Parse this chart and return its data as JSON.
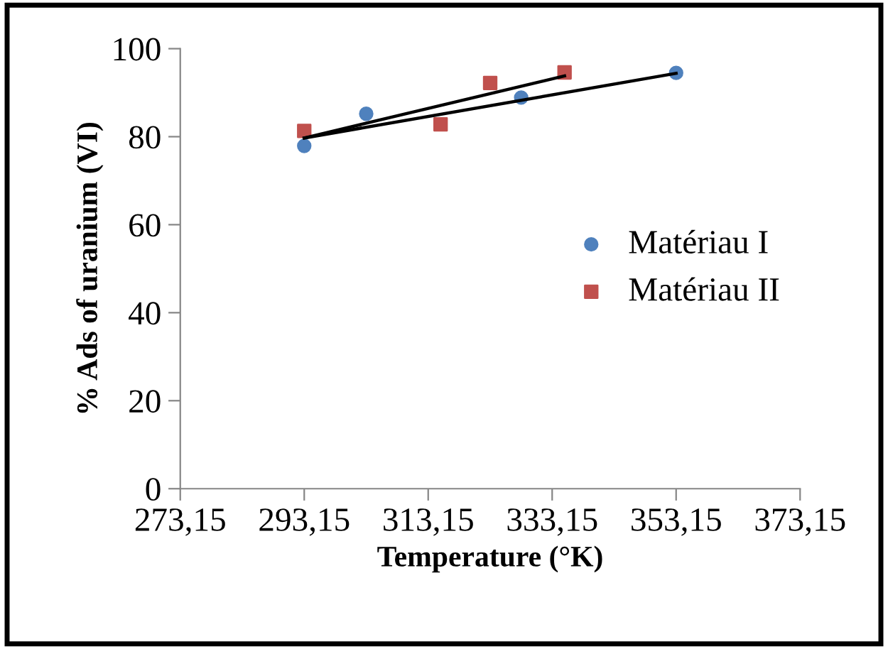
{
  "chart_data": {
    "type": "scatter",
    "xlabel": "Temperature (°K)",
    "ylabel": "% Ads of uranium (VI)",
    "xlim": [
      273.15,
      373.15
    ],
    "xticks": [
      {
        "value": 273.15,
        "label": "273,15"
      },
      {
        "value": 293.15,
        "label": "293,15"
      },
      {
        "value": 313.15,
        "label": "313,15"
      },
      {
        "value": 333.15,
        "label": "333,15"
      },
      {
        "value": 353.15,
        "label": "353,15"
      },
      {
        "value": 373.15,
        "label": "373,15"
      }
    ],
    "ylim": [
      0,
      100
    ],
    "yticks": [
      0,
      20,
      40,
      60,
      80,
      100
    ],
    "grid": false,
    "legend": "center right",
    "series": [
      {
        "name": "Matériau I",
        "color": "#4f81bd",
        "marker": "circle",
        "x": [
          293.15,
          303.15,
          328.15,
          353.15
        ],
        "values": [
          77.9,
          85.2,
          88.9,
          94.5
        ]
      },
      {
        "name": "Matériau II",
        "color": "#c0504d",
        "marker": "square",
        "x": [
          293.15,
          315.15,
          323.15,
          335.15
        ],
        "values": [
          81.3,
          82.8,
          92.2,
          94.6
        ]
      },
      {
        "type": "line",
        "color": "#000000",
        "marker": "none",
        "x": [
          293.15,
          353.15
        ],
        "values": [
          79.7,
          94.4
        ]
      },
      {
        "type": "line",
        "color": "#000000",
        "marker": "none",
        "x": [
          293.15,
          335.15
        ],
        "values": [
          79.7,
          93.8
        ]
      }
    ]
  }
}
